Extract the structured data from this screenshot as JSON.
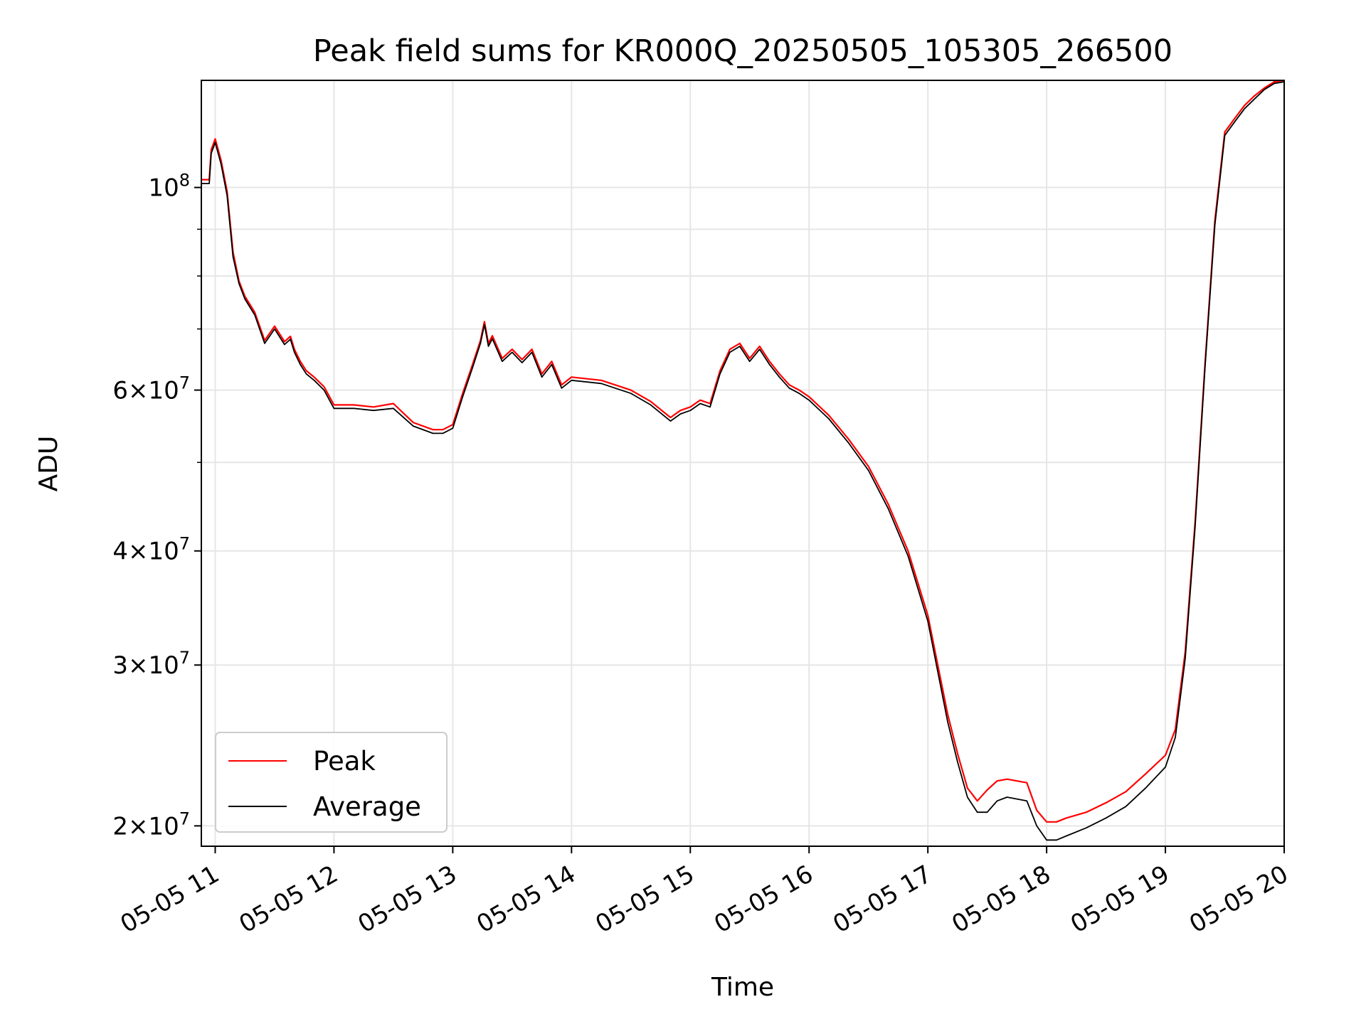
{
  "chart_data": {
    "type": "line",
    "title": "Peak field sums for KR000Q_20250505_105305_266500",
    "xlabel": "Time",
    "ylabel": "ADU",
    "xscale": "time",
    "yscale": "log",
    "xlim": [
      "2025-05-05 10:53",
      "2025-05-05 20:00"
    ],
    "ylim": [
      19000000,
      131000000
    ],
    "x_ticks": [
      {
        "value": "2025-05-05 11:00",
        "label": "05-05 11"
      },
      {
        "value": "2025-05-05 12:00",
        "label": "05-05 12"
      },
      {
        "value": "2025-05-05 13:00",
        "label": "05-05 13"
      },
      {
        "value": "2025-05-05 14:00",
        "label": "05-05 14"
      },
      {
        "value": "2025-05-05 15:00",
        "label": "05-05 15"
      },
      {
        "value": "2025-05-05 16:00",
        "label": "05-05 16"
      },
      {
        "value": "2025-05-05 17:00",
        "label": "05-05 17"
      },
      {
        "value": "2025-05-05 18:00",
        "label": "05-05 18"
      },
      {
        "value": "2025-05-05 19:00",
        "label": "05-05 19"
      },
      {
        "value": "2025-05-05 20:00",
        "label": "05-05 20"
      }
    ],
    "y_ticks": [
      {
        "value": 100000000,
        "base": "10",
        "exp": "8",
        "mantissa": ""
      },
      {
        "value": 60000000,
        "base": "10",
        "exp": "7",
        "mantissa": "6"
      },
      {
        "value": 40000000,
        "base": "10",
        "exp": "7",
        "mantissa": "4"
      },
      {
        "value": 30000000,
        "base": "10",
        "exp": "7",
        "mantissa": "3"
      },
      {
        "value": 20000000,
        "base": "10",
        "exp": "7",
        "mantissa": "2"
      }
    ],
    "y_minor_ticks": [
      50000000,
      70000000,
      80000000,
      90000000
    ],
    "grid": true,
    "legend": "lower-left",
    "series": [
      {
        "name": "Peak",
        "color": "#ff0000",
        "x": [
          "2025-05-05 10:53",
          "2025-05-05 10:57",
          "2025-05-05 10:58",
          "2025-05-05 11:00",
          "2025-05-05 11:03",
          "2025-05-05 11:06",
          "2025-05-05 11:09",
          "2025-05-05 11:12",
          "2025-05-05 11:15",
          "2025-05-05 11:20",
          "2025-05-05 11:25",
          "2025-05-05 11:30",
          "2025-05-05 11:35",
          "2025-05-05 11:38",
          "2025-05-05 11:40",
          "2025-05-05 11:43",
          "2025-05-05 11:46",
          "2025-05-05 11:50",
          "2025-05-05 11:55",
          "2025-05-05 12:00",
          "2025-05-05 12:10",
          "2025-05-05 12:20",
          "2025-05-05 12:30",
          "2025-05-05 12:40",
          "2025-05-05 12:50",
          "2025-05-05 12:55",
          "2025-05-05 13:00",
          "2025-05-05 13:05",
          "2025-05-05 13:10",
          "2025-05-05 13:14",
          "2025-05-05 13:16",
          "2025-05-05 13:18",
          "2025-05-05 13:20",
          "2025-05-05 13:25",
          "2025-05-05 13:30",
          "2025-05-05 13:35",
          "2025-05-05 13:40",
          "2025-05-05 13:45",
          "2025-05-05 13:50",
          "2025-05-05 13:55",
          "2025-05-05 14:00",
          "2025-05-05 14:15",
          "2025-05-05 14:30",
          "2025-05-05 14:40",
          "2025-05-05 14:50",
          "2025-05-05 14:55",
          "2025-05-05 15:00",
          "2025-05-05 15:05",
          "2025-05-05 15:10",
          "2025-05-05 15:15",
          "2025-05-05 15:20",
          "2025-05-05 15:25",
          "2025-05-05 15:30",
          "2025-05-05 15:35",
          "2025-05-05 15:40",
          "2025-05-05 15:45",
          "2025-05-05 15:50",
          "2025-05-05 15:55",
          "2025-05-05 16:00",
          "2025-05-05 16:10",
          "2025-05-05 16:20",
          "2025-05-05 16:30",
          "2025-05-05 16:40",
          "2025-05-05 16:50",
          "2025-05-05 17:00",
          "2025-05-05 17:05",
          "2025-05-05 17:10",
          "2025-05-05 17:15",
          "2025-05-05 17:20",
          "2025-05-05 17:25",
          "2025-05-05 17:30",
          "2025-05-05 17:35",
          "2025-05-05 17:40",
          "2025-05-05 17:50",
          "2025-05-05 17:55",
          "2025-05-05 18:00",
          "2025-05-05 18:05",
          "2025-05-05 18:10",
          "2025-05-05 18:20",
          "2025-05-05 18:30",
          "2025-05-05 18:40",
          "2025-05-05 18:50",
          "2025-05-05 19:00",
          "2025-05-05 19:05",
          "2025-05-05 19:10",
          "2025-05-05 19:15",
          "2025-05-05 19:20",
          "2025-05-05 19:25",
          "2025-05-05 19:30",
          "2025-05-05 19:35",
          "2025-05-05 19:40",
          "2025-05-05 19:45",
          "2025-05-05 19:50",
          "2025-05-05 19:55",
          "2025-05-05 20:00"
        ],
        "y": [
          102000000,
          102000000,
          110000000,
          113000000,
          107000000,
          99000000,
          85000000,
          79000000,
          76000000,
          73000000,
          68000000,
          70500000,
          67800000,
          68700000,
          66500000,
          64500000,
          63000000,
          62000000,
          60500000,
          57800000,
          57800000,
          57500000,
          58000000,
          55300000,
          54300000,
          54300000,
          55000000,
          59500000,
          64000000,
          68000000,
          71300000,
          67500000,
          68800000,
          65000000,
          66500000,
          64800000,
          66500000,
          62500000,
          64500000,
          60800000,
          62000000,
          61500000,
          60000000,
          58300000,
          56000000,
          57000000,
          57500000,
          58500000,
          58000000,
          63000000,
          66500000,
          67500000,
          65000000,
          67000000,
          64500000,
          62500000,
          60800000,
          60000000,
          59000000,
          56300000,
          53000000,
          49500000,
          45000000,
          40000000,
          34000000,
          30000000,
          26500000,
          24000000,
          22000000,
          21300000,
          21900000,
          22400000,
          22500000,
          22300000,
          20800000,
          20200000,
          20200000,
          20400000,
          20700000,
          21200000,
          21800000,
          22800000,
          23900000,
          25500000,
          31000000,
          43000000,
          64000000,
          92000000,
          115000000,
          119000000,
          123000000,
          126000000,
          128500000,
          130500000,
          131000000
        ]
      },
      {
        "name": "Average",
        "color": "#000000",
        "x": [
          "2025-05-05 10:53",
          "2025-05-05 10:57",
          "2025-05-05 10:58",
          "2025-05-05 11:00",
          "2025-05-05 11:03",
          "2025-05-05 11:06",
          "2025-05-05 11:09",
          "2025-05-05 11:12",
          "2025-05-05 11:15",
          "2025-05-05 11:20",
          "2025-05-05 11:25",
          "2025-05-05 11:30",
          "2025-05-05 11:35",
          "2025-05-05 11:38",
          "2025-05-05 11:40",
          "2025-05-05 11:43",
          "2025-05-05 11:46",
          "2025-05-05 11:50",
          "2025-05-05 11:55",
          "2025-05-05 12:00",
          "2025-05-05 12:10",
          "2025-05-05 12:20",
          "2025-05-05 12:30",
          "2025-05-05 12:40",
          "2025-05-05 12:50",
          "2025-05-05 12:55",
          "2025-05-05 13:00",
          "2025-05-05 13:05",
          "2025-05-05 13:10",
          "2025-05-05 13:14",
          "2025-05-05 13:16",
          "2025-05-05 13:18",
          "2025-05-05 13:20",
          "2025-05-05 13:25",
          "2025-05-05 13:30",
          "2025-05-05 13:35",
          "2025-05-05 13:40",
          "2025-05-05 13:45",
          "2025-05-05 13:50",
          "2025-05-05 13:55",
          "2025-05-05 14:00",
          "2025-05-05 14:15",
          "2025-05-05 14:30",
          "2025-05-05 14:40",
          "2025-05-05 14:50",
          "2025-05-05 14:55",
          "2025-05-05 15:00",
          "2025-05-05 15:05",
          "2025-05-05 15:10",
          "2025-05-05 15:15",
          "2025-05-05 15:20",
          "2025-05-05 15:25",
          "2025-05-05 15:30",
          "2025-05-05 15:35",
          "2025-05-05 15:40",
          "2025-05-05 15:45",
          "2025-05-05 15:50",
          "2025-05-05 15:55",
          "2025-05-05 16:00",
          "2025-05-05 16:10",
          "2025-05-05 16:20",
          "2025-05-05 16:30",
          "2025-05-05 16:40",
          "2025-05-05 16:50",
          "2025-05-05 17:00",
          "2025-05-05 17:05",
          "2025-05-05 17:10",
          "2025-05-05 17:15",
          "2025-05-05 17:20",
          "2025-05-05 17:25",
          "2025-05-05 17:30",
          "2025-05-05 17:35",
          "2025-05-05 17:40",
          "2025-05-05 17:50",
          "2025-05-05 17:55",
          "2025-05-05 18:00",
          "2025-05-05 18:05",
          "2025-05-05 18:10",
          "2025-05-05 18:20",
          "2025-05-05 18:30",
          "2025-05-05 18:40",
          "2025-05-05 18:50",
          "2025-05-05 19:00",
          "2025-05-05 19:05",
          "2025-05-05 19:10",
          "2025-05-05 19:15",
          "2025-05-05 19:20",
          "2025-05-05 19:25",
          "2025-05-05 19:30",
          "2025-05-05 19:35",
          "2025-05-05 19:40",
          "2025-05-05 19:45",
          "2025-05-05 19:50",
          "2025-05-05 19:55",
          "2025-05-05 20:00"
        ],
        "y": [
          101000000,
          101000000,
          109000000,
          112000000,
          106000000,
          98000000,
          84000000,
          78500000,
          75500000,
          72500000,
          67500000,
          70000000,
          67300000,
          68200000,
          66000000,
          64000000,
          62500000,
          61500000,
          60000000,
          57300000,
          57300000,
          57000000,
          57300000,
          54800000,
          53800000,
          53800000,
          54500000,
          59000000,
          63500000,
          67500000,
          70800000,
          67000000,
          68300000,
          64500000,
          66000000,
          64300000,
          66000000,
          62000000,
          64000000,
          60300000,
          61500000,
          61000000,
          59500000,
          57800000,
          55500000,
          56500000,
          57000000,
          58000000,
          57500000,
          62500000,
          66000000,
          67000000,
          64500000,
          66500000,
          64000000,
          62000000,
          60300000,
          59500000,
          58500000,
          55800000,
          52500000,
          49000000,
          44500000,
          39500000,
          33500000,
          29500000,
          26000000,
          23500000,
          21500000,
          20700000,
          20700000,
          21300000,
          21500000,
          21300000,
          20000000,
          19300000,
          19300000,
          19500000,
          19900000,
          20400000,
          21000000,
          22000000,
          23200000,
          25000000,
          30500000,
          42500000,
          63500000,
          91000000,
          114000000,
          118000000,
          122000000,
          125000000,
          128000000,
          130000000,
          130500000
        ]
      }
    ]
  }
}
